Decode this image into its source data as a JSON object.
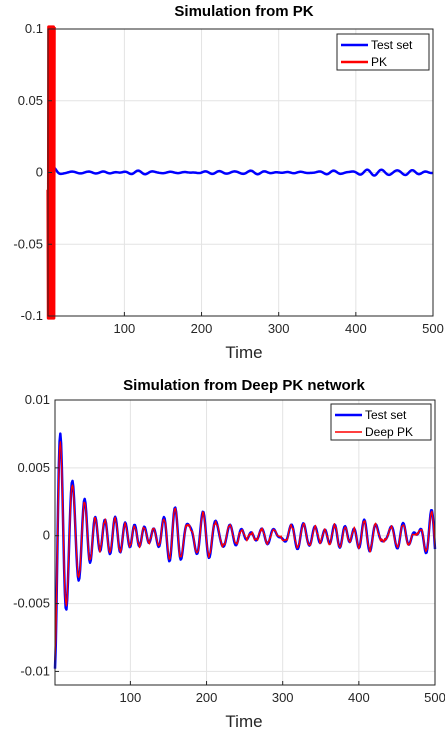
{
  "colors": {
    "test_set": "#0000ff",
    "pk": "#ff0000"
  },
  "chart_data": [
    {
      "type": "line",
      "title": "Simulation from PK",
      "xlabel": "Time",
      "ylabel": "",
      "xlim": [
        1,
        500
      ],
      "ylim": [
        -0.1,
        0.1
      ],
      "xticks": [
        100,
        200,
        300,
        400,
        500
      ],
      "xtick_labels": [
        "100",
        "200",
        "300",
        "400",
        "500"
      ],
      "yticks": [
        -0.1,
        -0.05,
        0,
        0.05,
        0.1
      ],
      "ytick_labels": [
        "-0.1",
        "-0.05",
        "0",
        "0.05",
        "0.1"
      ],
      "grid": true,
      "legend_position": "top-right",
      "series": [
        {
          "name": "Test set",
          "color": "#0000ff",
          "kind": "test",
          "init_amp": 0.0075,
          "init_decay": 9,
          "noise_amp": 0.0014,
          "seed": 11
        },
        {
          "name": "PK",
          "color": "#ff0000",
          "kind": "blowup",
          "x_range": [
            1,
            9
          ],
          "start_value": -0.012
        }
      ]
    },
    {
      "type": "line",
      "title": "Simulation from Deep PK network",
      "xlabel": "Time",
      "ylabel": "",
      "xlim": [
        1,
        500
      ],
      "ylim": [
        -0.011,
        0.01
      ],
      "xticks": [
        100,
        200,
        300,
        400,
        500
      ],
      "xtick_labels": [
        "100",
        "200",
        "300",
        "400",
        "500"
      ],
      "yticks": [
        -0.01,
        -0.005,
        0,
        0.005,
        0.01
      ],
      "ytick_labels": [
        "-0.01",
        "-0.005",
        "0",
        "0.005",
        "0.01"
      ],
      "grid": true,
      "legend_position": "top-right",
      "series": [
        {
          "name": "Test set",
          "color": "#0000ff",
          "kind": "test",
          "init_amp": 0.0098,
          "init_decay": 28,
          "noise_amp": 0.0017,
          "seed": 7
        },
        {
          "name": "Deep PK",
          "color": "#ff0000",
          "kind": "follow",
          "scale": 0.93,
          "jitter": 0.00015
        }
      ]
    }
  ]
}
